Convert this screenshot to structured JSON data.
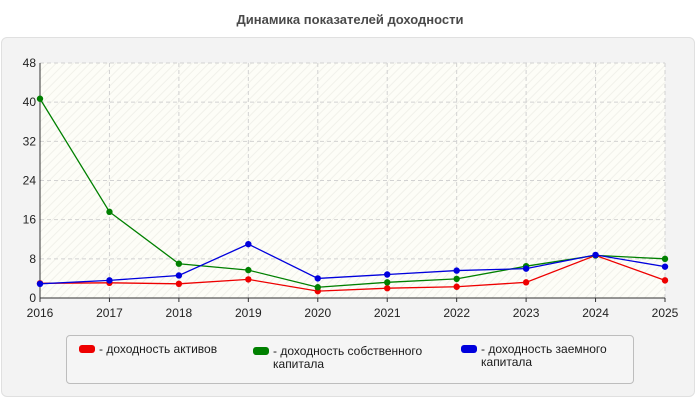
{
  "title": "Динамика показателей доходности",
  "chart_data": {
    "type": "line",
    "x": [
      2016,
      2017,
      2018,
      2019,
      2020,
      2021,
      2022,
      2023,
      2024,
      2025
    ],
    "ylim": [
      0,
      48
    ],
    "yticks": [
      0,
      8,
      16,
      24,
      32,
      40,
      48
    ],
    "grid": true,
    "legend_position": "bottom",
    "series": [
      {
        "name": "- доходность активов",
        "color": "#ee0000",
        "values": [
          3.0,
          3.1,
          2.9,
          3.8,
          1.4,
          2.0,
          2.3,
          3.2,
          8.7,
          3.6
        ]
      },
      {
        "name": "- доходность собственного\nкапитала",
        "color": "#008000",
        "values": [
          40.7,
          17.6,
          7.0,
          5.7,
          2.2,
          3.2,
          3.9,
          6.5,
          8.7,
          8.0
        ]
      },
      {
        "name": "- доходность заемного\nкапитала",
        "color": "#0000dd",
        "values": [
          2.9,
          3.6,
          4.6,
          11.0,
          4.0,
          4.8,
          5.6,
          6.0,
          8.8,
          6.4
        ]
      }
    ]
  }
}
